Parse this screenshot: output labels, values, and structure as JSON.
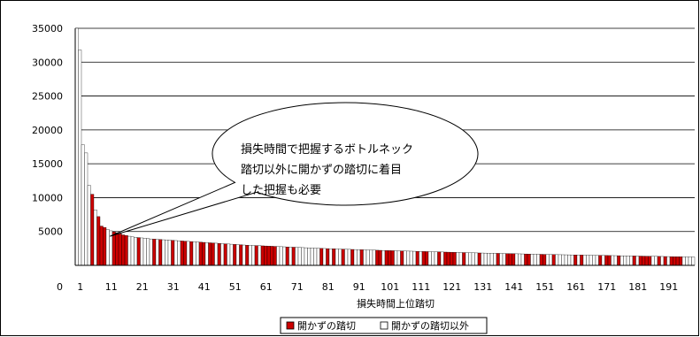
{
  "chart_data": {
    "type": "bar",
    "title": "",
    "xlabel": "損失時間上位踏切",
    "ylabel": "",
    "ylim": [
      0,
      35000
    ],
    "yticks": [
      0,
      5000,
      10000,
      15000,
      20000,
      25000,
      30000,
      35000
    ],
    "xticks": [
      "1",
      "11",
      "21",
      "31",
      "41",
      "51",
      "61",
      "71",
      "81",
      "91",
      "101",
      "111",
      "121",
      "131",
      "141",
      "151",
      "161",
      "171",
      "181",
      "191"
    ],
    "grid": true,
    "legend_position": "bottom",
    "series": [
      {
        "name": "開かずの踏切",
        "color": "#cc0000"
      },
      {
        "name": "開かずの踏切以外",
        "color": "#ffffff"
      }
    ],
    "red_indices": [
      5,
      7,
      8,
      9,
      12,
      13,
      14,
      15,
      16,
      20,
      25,
      27,
      31,
      34,
      35,
      37,
      40,
      41,
      43,
      44,
      46,
      48,
      51,
      53,
      55,
      58,
      60,
      61,
      62,
      63,
      64,
      68,
      70,
      79,
      81,
      83,
      86,
      89,
      92,
      97,
      98,
      100,
      101,
      102,
      105,
      110,
      112,
      113,
      117,
      119,
      120,
      121,
      122,
      125,
      130,
      136,
      139,
      140,
      141,
      145,
      146,
      150,
      151,
      154,
      161,
      163,
      169,
      171,
      172,
      175,
      180,
      182,
      183,
      184,
      185,
      188,
      190,
      192,
      193,
      194,
      195
    ],
    "values": [
      35000,
      31800,
      17800,
      16600,
      11800,
      10500,
      8200,
      7200,
      5800,
      5600,
      5300,
      5100,
      4950,
      4800,
      4650,
      4500,
      4400,
      4300,
      4200,
      4150,
      4100,
      4050,
      4000,
      3950,
      3900,
      3870,
      3840,
      3810,
      3780,
      3750,
      3720,
      3690,
      3660,
      3630,
      3600,
      3570,
      3540,
      3510,
      3480,
      3450,
      3420,
      3390,
      3360,
      3330,
      3300,
      3270,
      3240,
      3210,
      3180,
      3150,
      3120,
      3090,
      3060,
      3030,
      3000,
      2980,
      2960,
      2940,
      2920,
      2900,
      2880,
      2860,
      2840,
      2820,
      2800,
      2780,
      2760,
      2740,
      2720,
      2700,
      2680,
      2660,
      2640,
      2620,
      2600,
      2580,
      2560,
      2540,
      2520,
      2500,
      2485,
      2470,
      2455,
      2440,
      2425,
      2410,
      2395,
      2380,
      2365,
      2350,
      2335,
      2320,
      2305,
      2290,
      2275,
      2260,
      2245,
      2230,
      2215,
      2200,
      2188,
      2176,
      2164,
      2152,
      2140,
      2128,
      2116,
      2104,
      2092,
      2080,
      2068,
      2056,
      2044,
      2032,
      2020,
      2008,
      1996,
      1984,
      1972,
      1960,
      1948,
      1936,
      1924,
      1912,
      1900,
      1888,
      1876,
      1864,
      1852,
      1840,
      1830,
      1820,
      1810,
      1800,
      1790,
      1780,
      1770,
      1760,
      1750,
      1740,
      1730,
      1720,
      1710,
      1700,
      1690,
      1680,
      1670,
      1660,
      1650,
      1640,
      1630,
      1620,
      1610,
      1600,
      1592,
      1584,
      1576,
      1568,
      1560,
      1552,
      1544,
      1536,
      1528,
      1520,
      1512,
      1504,
      1496,
      1488,
      1480,
      1472,
      1464,
      1456,
      1448,
      1440,
      1432,
      1424,
      1416,
      1408,
      1400,
      1392,
      1384,
      1376,
      1368,
      1360,
      1352,
      1344,
      1336,
      1328,
      1320,
      1312,
      1304,
      1296,
      1288,
      1280,
      1272,
      1264,
      1256,
      1248,
      1240,
      1232
    ],
    "annotation": {
      "lines": [
        "損失時間で把握するボトルネック",
        "踏切以外に開かずの踏切に着目",
        "した把握も必要"
      ],
      "target_rank": 10
    }
  }
}
